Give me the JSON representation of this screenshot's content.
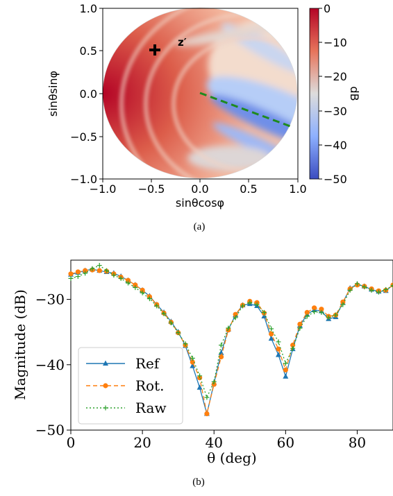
{
  "chart_data": [
    {
      "type": "heatmap",
      "panel_label": "(a)",
      "xlabel": "sinθcosφ",
      "ylabel": "sinθsinφ",
      "xlim": [
        -1.0,
        1.0
      ],
      "ylim": [
        -1.0,
        1.0
      ],
      "xticks": [
        "−1.0",
        "−0.5",
        "0.0",
        "0.5",
        "1.0"
      ],
      "yticks": [
        "1.0",
        "0.5",
        "0.0",
        "−0.5",
        "−1.0"
      ],
      "colorbar": {
        "label": "dB",
        "range": [
          -50,
          0
        ],
        "ticks": [
          "0",
          "−10",
          "−20",
          "−30",
          "−40",
          "−50"
        ],
        "colormap": "coolwarm (reversed)",
        "high_color": "#b40426",
        "low_color": "#3b4cc0"
      },
      "annotations": [
        {
          "text": "z′",
          "x": -0.24,
          "y": 0.52
        },
        {
          "marker": "plus",
          "x": -0.48,
          "y": 0.52
        }
      ],
      "dashed_line": {
        "color": "#1f8a1f",
        "x": [
          0.0,
          0.92
        ],
        "y": [
          0.0,
          -0.38
        ]
      }
    },
    {
      "type": "line",
      "panel_label": "(b)",
      "xlabel": "θ (deg)",
      "ylabel": "Magnitude (dB)",
      "xlim": [
        0,
        90
      ],
      "ylim": [
        -50,
        -24
      ],
      "xticks": [
        "0",
        "20",
        "40",
        "60",
        "80"
      ],
      "yticks": [
        "−30",
        "−40",
        "−50"
      ],
      "legend": "lower-left",
      "x": [
        0,
        2,
        4,
        6,
        8,
        10,
        12,
        14,
        16,
        18,
        20,
        22,
        24,
        26,
        28,
        30,
        32,
        34,
        36,
        38,
        40,
        42,
        44,
        46,
        48,
        50,
        52,
        54,
        56,
        58,
        60,
        62,
        64,
        66,
        68,
        70,
        72,
        74,
        76,
        78,
        80,
        82,
        84,
        86,
        88,
        90
      ],
      "series": [
        {
          "name": "Ref",
          "color": "#1f77b4",
          "marker": "triangle",
          "dash": "solid",
          "values": [
            -26.2,
            -25.9,
            -25.6,
            -25.4,
            -25.6,
            -25.8,
            -26.0,
            -26.5,
            -27.1,
            -27.8,
            -28.6,
            -29.5,
            -30.8,
            -32.0,
            -33.4,
            -35.0,
            -37.1,
            -40.2,
            -43.5,
            -47.5,
            -42.8,
            -38.2,
            -34.6,
            -32.4,
            -30.9,
            -30.7,
            -31.0,
            -32.6,
            -36.0,
            -38.5,
            -41.8,
            -37.6,
            -34.0,
            -32.3,
            -31.6,
            -31.8,
            -33.0,
            -32.7,
            -30.5,
            -28.3,
            -27.7,
            -28.0,
            -28.5,
            -28.8,
            -28.7,
            -27.8
          ]
        },
        {
          "name": "Rot.",
          "color": "#ff7f0e",
          "marker": "circle",
          "dash": "dashed",
          "values": [
            -26.1,
            -25.8,
            -25.6,
            -25.5,
            -25.6,
            -25.7,
            -26.1,
            -26.6,
            -27.1,
            -27.8,
            -28.6,
            -29.6,
            -30.8,
            -32.1,
            -33.5,
            -35.1,
            -37.0,
            -39.6,
            -42.0,
            -47.5,
            -43.0,
            -38.8,
            -34.7,
            -32.3,
            -30.9,
            -30.3,
            -30.5,
            -32.1,
            -35.3,
            -37.6,
            -40.8,
            -37.0,
            -33.8,
            -32.0,
            -31.3,
            -31.5,
            -32.6,
            -32.4,
            -30.4,
            -28.4,
            -27.8,
            -28.0,
            -28.4,
            -28.7,
            -28.6,
            -27.8
          ]
        },
        {
          "name": "Raw",
          "color": "#2ca02c",
          "marker": "plus",
          "dash": "dotted",
          "values": [
            -26.8,
            -26.5,
            -26.0,
            -25.3,
            -24.8,
            -25.6,
            -26.3,
            -26.8,
            -27.5,
            -28.2,
            -29.0,
            -29.9,
            -31.0,
            -32.2,
            -33.6,
            -35.1,
            -36.8,
            -39.0,
            -41.7,
            -45.0,
            -42.6,
            -37.0,
            -34.4,
            -32.8,
            -31.0,
            -30.5,
            -30.8,
            -32.0,
            -34.5,
            -36.5,
            -39.8,
            -37.5,
            -34.4,
            -32.6,
            -31.9,
            -32.0,
            -32.8,
            -32.4,
            -30.8,
            -28.6,
            -27.6,
            -28.1,
            -28.6,
            -28.9,
            -28.5,
            -27.9
          ]
        }
      ]
    }
  ]
}
